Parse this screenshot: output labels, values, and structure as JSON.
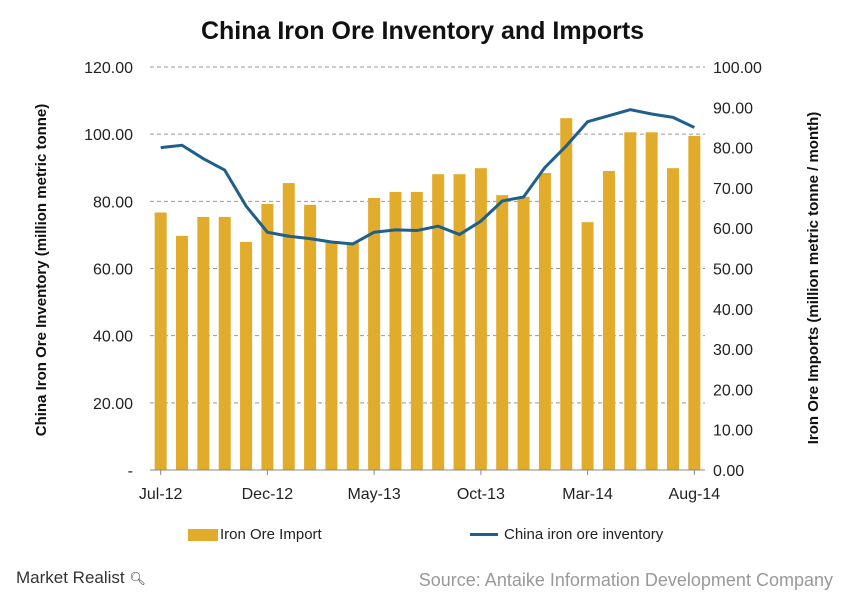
{
  "chart_data": {
    "type": "bar+line",
    "title": "China Iron Ore Inventory and Imports",
    "categories": [
      "Jul-12",
      "Aug-12",
      "Sep-12",
      "Oct-12",
      "Nov-12",
      "Dec-12",
      "Jan-13",
      "Feb-13",
      "Mar-13",
      "Apr-13",
      "May-13",
      "Jun-13",
      "Jul-13",
      "Aug-13",
      "Sep-13",
      "Oct-13",
      "Nov-13",
      "Dec-13",
      "Jan-14",
      "Feb-14",
      "Mar-14",
      "Apr-14",
      "May-14",
      "Jun-14",
      "Jul-14",
      "Aug-14"
    ],
    "x_tick_labels": [
      "Jul-12",
      "Dec-12",
      "May-13",
      "Oct-13",
      "Mar-14",
      "Aug-14"
    ],
    "series": [
      {
        "name": "Iron Ore Import",
        "type": "bar",
        "axis": "right",
        "color": "#E1AB2B",
        "values": [
          63.9,
          58.1,
          62.8,
          62.8,
          56.6,
          66.0,
          71.2,
          65.8,
          56.5,
          56.5,
          67.5,
          69.0,
          69.0,
          73.4,
          73.4,
          74.9,
          68.2,
          67.8,
          73.7,
          87.3,
          61.5,
          74.2,
          83.8,
          83.8,
          74.9,
          82.9
        ]
      },
      {
        "name": "China iron ore inventory",
        "type": "line",
        "axis": "left",
        "color": "#1F5F8B",
        "values": [
          96.0,
          96.7,
          92.7,
          89.3,
          78.6,
          70.8,
          69.6,
          68.9,
          67.9,
          67.3,
          70.8,
          71.5,
          71.3,
          72.6,
          70.1,
          74.1,
          80.1,
          81.3,
          90.1,
          96.5,
          103.7,
          105.5,
          107.3,
          106.0,
          105.0,
          102.0
        ]
      }
    ],
    "left_axis": {
      "label": "China Iron Ore Inventory (million metric tonne)",
      "ylim": [
        0,
        120
      ],
      "ticks": [
        "-",
        "20.00",
        "40.00",
        "60.00",
        "80.00",
        "100.00",
        "120.00"
      ]
    },
    "right_axis": {
      "label": "Iron Ore Imports (million metric tonne / month)",
      "ylim": [
        0,
        100
      ],
      "ticks": [
        "0.00",
        "10.00",
        "20.00",
        "30.00",
        "40.00",
        "50.00",
        "60.00",
        "70.00",
        "80.00",
        "90.00",
        "100.00"
      ]
    },
    "grid": "horizontal dashed",
    "legend": "bottom"
  },
  "footer": {
    "brand": "Market Realist",
    "source": "Source: Antaike Information Development Company"
  }
}
